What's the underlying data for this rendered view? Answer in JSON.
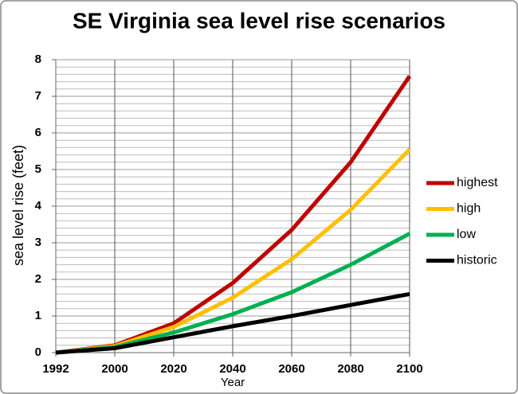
{
  "chart_data": {
    "type": "line",
    "title": "SE Virginia sea level rise scenarios",
    "x_label": "Year",
    "y_label": "sea level rise (feet)",
    "categories": [
      "1992",
      "2000",
      "2020",
      "2040",
      "2060",
      "2080",
      "2100"
    ],
    "series": [
      {
        "name": "highest",
        "color": "#c00000",
        "values": [
          0,
          0.2,
          0.8,
          1.9,
          3.35,
          5.2,
          7.55
        ]
      },
      {
        "name": "high",
        "color": "#ffc000",
        "values": [
          0,
          0.18,
          0.7,
          1.5,
          2.55,
          3.9,
          5.55
        ]
      },
      {
        "name": "low",
        "color": "#00b050",
        "values": [
          0,
          0.15,
          0.55,
          1.05,
          1.65,
          2.4,
          3.25
        ]
      },
      {
        "name": "historic",
        "color": "#000000",
        "values": [
          0,
          0.12,
          0.42,
          0.72,
          1.0,
          1.3,
          1.6
        ]
      }
    ],
    "ylim": [
      0,
      8
    ],
    "yticks": [
      0,
      1,
      2,
      3,
      4,
      5,
      6,
      7,
      8
    ],
    "minor_grid_step": 0.2,
    "grid": true,
    "legend": "right"
  }
}
